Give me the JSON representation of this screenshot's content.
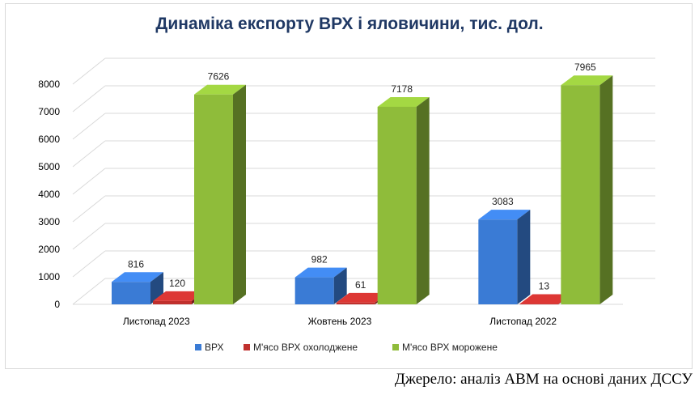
{
  "chart_data": {
    "type": "bar",
    "title": "Динаміка експорту ВРХ і яловичини, тис. дол.",
    "categories": [
      "Листопад 2023",
      "Жовтень 2023",
      "Листопад 2022"
    ],
    "series": [
      {
        "name": "ВРХ",
        "values": [
          816,
          982,
          3083
        ],
        "color": "#3a7bd5"
      },
      {
        "name": "М'ясо ВРХ охолоджене",
        "values": [
          120,
          61,
          13
        ],
        "color": "#c0302d"
      },
      {
        "name": "М'ясо ВРХ морожене",
        "values": [
          7626,
          7178,
          7965
        ],
        "color": "#8fbc3a"
      }
    ],
    "yticks": [
      0,
      1000,
      2000,
      3000,
      4000,
      5000,
      6000,
      7000,
      8000
    ],
    "ylim": [
      0,
      8000
    ],
    "grid": true,
    "legend": "bottom"
  },
  "source": "Джерело: аналіз АВМ на основі даних ДССУ"
}
